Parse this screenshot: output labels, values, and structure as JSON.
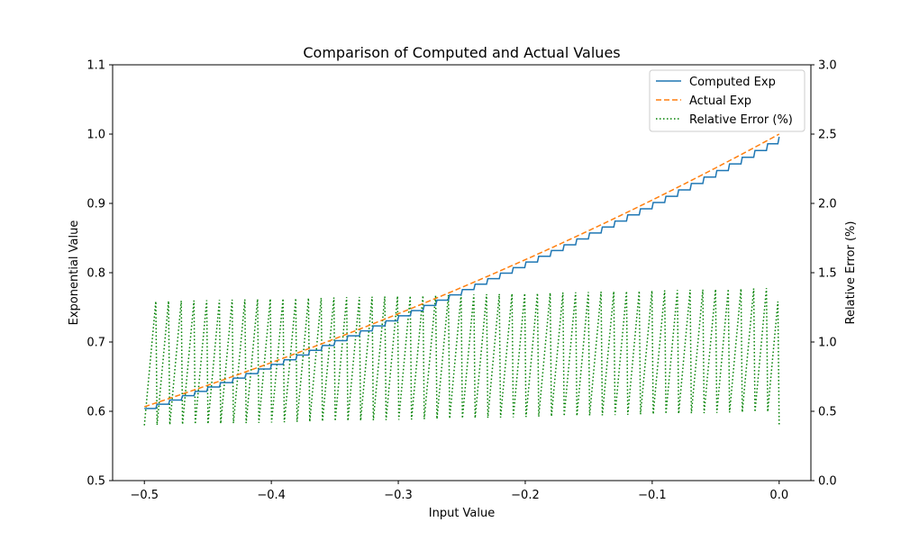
{
  "chart_data": {
    "type": "line",
    "title": "Comparison of Computed and Actual Values",
    "xlabel": "Input Value",
    "ylabel": "Exponential Value",
    "y2label": "Relative Error (%)",
    "xlim": [
      -0.525,
      0.025
    ],
    "ylim": [
      0.5,
      1.1
    ],
    "y2lim": [
      0.0,
      3.0
    ],
    "xticks": [
      -0.5,
      -0.4,
      -0.3,
      -0.2,
      -0.1,
      0.0
    ],
    "xtick_labels": [
      "−0.5",
      "−0.4",
      "−0.3",
      "−0.2",
      "−0.1",
      "0.0"
    ],
    "yticks": [
      0.5,
      0.6,
      0.7,
      0.8,
      0.9,
      1.0,
      1.1
    ],
    "ytick_labels": [
      "0.5",
      "0.6",
      "0.7",
      "0.8",
      "0.9",
      "1.0",
      "1.1"
    ],
    "y2ticks": [
      0.0,
      0.5,
      1.0,
      1.5,
      2.0,
      2.5,
      3.0
    ],
    "y2tick_labels": [
      "0.0",
      "0.5",
      "1.0",
      "1.5",
      "2.0",
      "2.5",
      "3.0"
    ],
    "grid": false,
    "legend_position": "top-right",
    "legend": [
      "Computed Exp",
      "Actual Exp",
      "Relative Error (%)"
    ],
    "colors": {
      "computed": "#1f77b4",
      "actual": "#ff7f0e",
      "error": "#008000"
    },
    "x_range": [
      -0.5,
      0.0
    ],
    "samples": 500,
    "step_width": 0.01,
    "error_axis": "right"
  }
}
